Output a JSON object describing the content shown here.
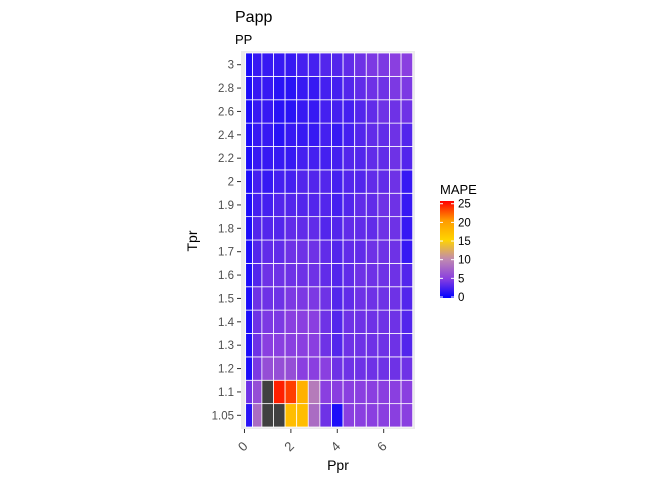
{
  "chart_data": {
    "type": "heatmap",
    "title": "Papp",
    "subtitle": "PP",
    "xlabel": "Ppr",
    "ylabel": "Tpr",
    "x": [
      0.2,
      0.5,
      1.0,
      1.5,
      2.0,
      2.5,
      3.0,
      3.5,
      4.0,
      4.5,
      5.0,
      5.5,
      6.0,
      6.5,
      7.0
    ],
    "x_ticks": [
      "0",
      "2",
      "4",
      "6"
    ],
    "xlim": [
      -0.15,
      7.35
    ],
    "y_categories": [
      "1.05",
      "1.1",
      "1.2",
      "1.3",
      "1.4",
      "1.5",
      "1.6",
      "1.7",
      "1.8",
      "1.9",
      "2",
      "2.2",
      "2.4",
      "2.6",
      "2.8",
      "3"
    ],
    "values": [
      [
        1.5,
        8,
        25,
        25,
        17,
        17,
        8,
        4,
        1,
        5,
        5,
        5,
        5,
        5,
        5
      ],
      [
        4,
        6,
        25,
        24,
        23,
        18,
        9,
        5,
        5,
        5,
        5,
        5,
        5,
        5,
        5
      ],
      [
        1,
        4.5,
        6,
        6,
        6,
        5,
        5,
        5,
        4,
        4,
        4,
        4,
        4,
        4,
        4
      ],
      [
        1,
        4,
        5,
        5,
        5,
        5,
        5,
        4,
        3,
        4,
        4,
        4,
        4,
        4,
        3
      ],
      [
        1,
        4,
        4.5,
        4.5,
        5,
        5,
        5,
        4,
        3,
        4,
        4,
        4,
        4,
        4,
        3
      ],
      [
        1,
        4,
        4,
        4,
        4.5,
        4.5,
        4.5,
        4,
        3,
        3.5,
        4,
        4,
        4,
        4,
        3
      ],
      [
        1,
        3,
        4,
        4,
        4,
        4,
        4,
        3.5,
        3,
        3.5,
        4,
        4,
        4,
        4,
        3
      ],
      [
        1,
        3,
        3.5,
        3.5,
        4,
        4,
        4,
        3.5,
        3,
        3.5,
        3.5,
        4,
        4,
        4,
        2
      ],
      [
        1,
        3,
        3,
        3,
        3.5,
        3.5,
        3.5,
        3,
        3,
        3.5,
        3.5,
        3.5,
        4,
        4,
        2
      ],
      [
        1,
        2.5,
        2.5,
        3,
        3,
        3,
        3,
        3,
        2.5,
        3,
        3.5,
        3.5,
        4,
        4,
        2
      ],
      [
        1,
        2.5,
        2,
        2.5,
        2.5,
        3,
        3,
        3,
        2.5,
        3,
        3,
        3.5,
        3.5,
        4,
        2
      ],
      [
        1,
        2,
        2,
        2,
        2,
        2.5,
        2.5,
        2.5,
        2.5,
        3,
        3,
        3.5,
        3.5,
        4,
        3
      ],
      [
        1,
        2,
        2,
        1.5,
        2,
        2,
        2,
        2.5,
        2,
        2.5,
        3,
        3.5,
        3.5,
        4,
        3
      ],
      [
        1,
        2,
        2,
        1.5,
        1.5,
        2,
        2,
        2.5,
        2.5,
        2.5,
        3,
        3.5,
        4,
        4,
        4
      ],
      [
        1,
        2,
        2,
        1.5,
        1.5,
        2,
        2,
        2.5,
        2.5,
        3,
        3.5,
        4,
        4,
        4.5,
        4.5
      ],
      [
        1,
        2,
        2,
        2,
        2,
        2.5,
        2.5,
        3,
        3,
        3.5,
        4,
        4.5,
        4.5,
        5,
        5
      ]
    ],
    "na_value": 25,
    "na_cells": [
      [
        0,
        2
      ],
      [
        0,
        3
      ],
      [
        1,
        2
      ]
    ],
    "legend": {
      "title": "MAPE",
      "ticks": [
        "0",
        "5",
        "10",
        "15",
        "20",
        "25"
      ],
      "placement": "right"
    },
    "colors": {
      "scale": [
        "#0000ff",
        "#8a3fe0",
        "#c08ab0",
        "#ffd400",
        "#ff9a00",
        "#ff0000"
      ],
      "na": "#404040",
      "panel_bg": "#ebebeb",
      "grid": "#ffffff"
    }
  }
}
